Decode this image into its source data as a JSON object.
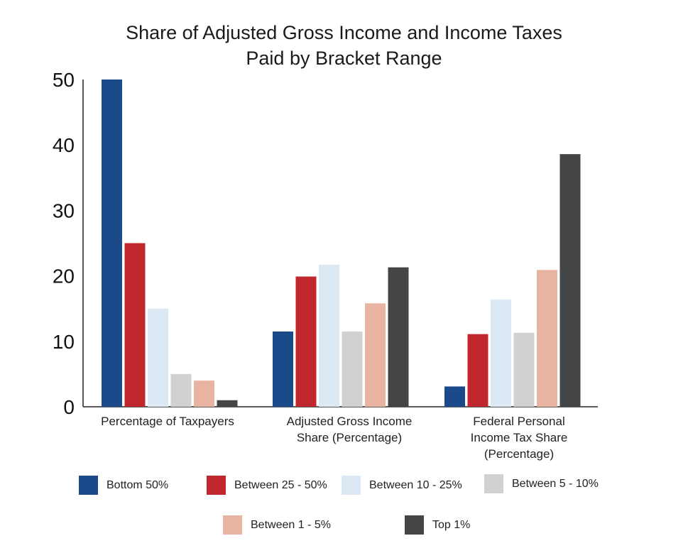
{
  "chart_data": {
    "type": "bar",
    "title_lines": [
      "Share of Adjusted Gross Income and Income Taxes",
      "Paid by Bracket Range"
    ],
    "categories": [
      [
        "Percentage of Taxpayers"
      ],
      [
        "Adjusted Gross Income",
        "Share (Percentage)"
      ],
      [
        "Federal Personal",
        "Income Tax Share",
        "(Percentage)"
      ]
    ],
    "series": [
      {
        "name": "Bottom 50%",
        "color": "#1b4a8a",
        "values": [
          50,
          11.5,
          3.1
        ]
      },
      {
        "name": "Between 25 - 50%",
        "color": "#c0282d",
        "values": [
          25,
          19.9,
          11.1
        ]
      },
      {
        "name": "Between 10 - 25%",
        "color": "#dce8f4",
        "values": [
          15,
          21.7,
          16.4
        ]
      },
      {
        "name": "Between 5 - 10%",
        "color": "#d0d1d3",
        "values": [
          5,
          11.5,
          11.3
        ]
      },
      {
        "name": "Between 1 - 5%",
        "color": "#e8b3a1",
        "values": [
          4,
          15.8,
          20.9
        ]
      },
      {
        "name": "Top 1%",
        "color": "#444547",
        "values": [
          1,
          21.3,
          38.6
        ]
      }
    ],
    "yticks": [
      0,
      10,
      20,
      30,
      40,
      50
    ],
    "ylim": [
      0,
      50
    ],
    "xlabel": "",
    "ylabel": ""
  }
}
